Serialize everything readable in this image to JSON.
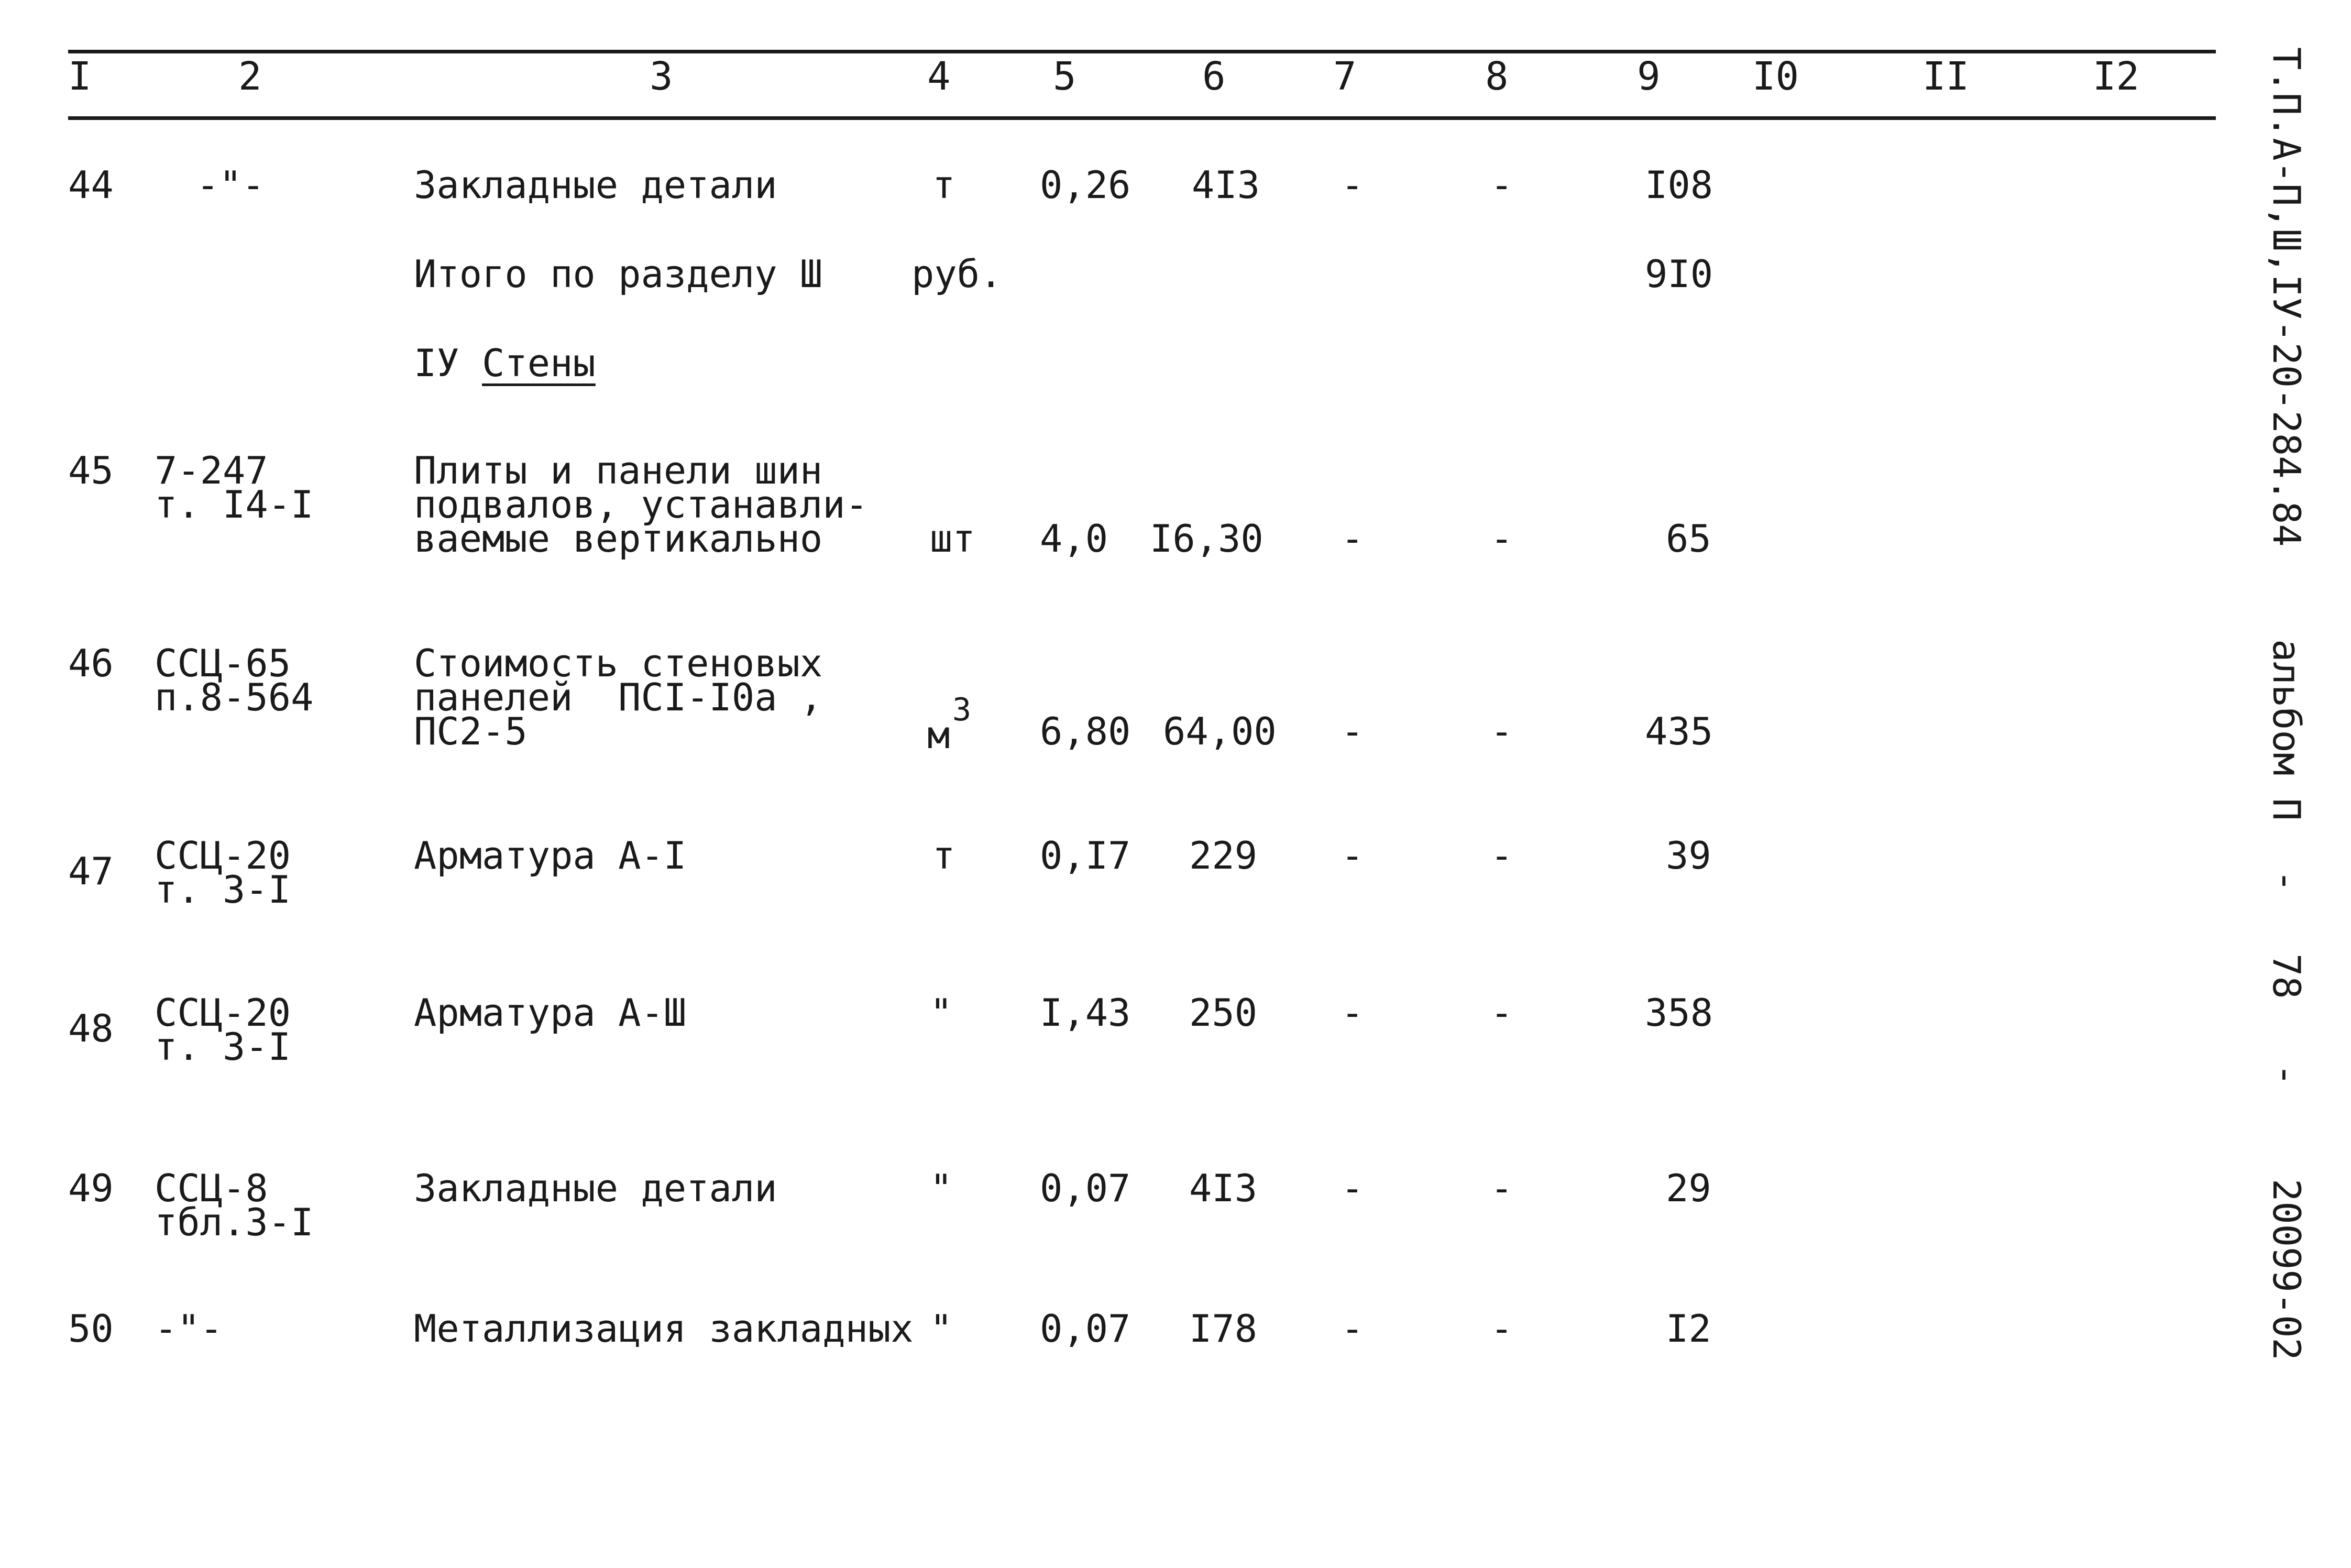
{
  "header": {
    "columns": [
      "I",
      "2",
      "3",
      "4",
      "5",
      "6",
      "7",
      "8",
      "9",
      "I0",
      "II",
      "I2"
    ]
  },
  "rows": [
    {
      "num": "44",
      "code1": "-\"-",
      "code2": "",
      "name1": "Закладные детали",
      "name2": "",
      "name3": "",
      "unit": "т",
      "c5": "0,26",
      "c6": "4I3",
      "c7": "-",
      "c8": "-",
      "c9": "I08"
    },
    {
      "num": "",
      "code1": "",
      "code2": "",
      "name1": "Итого по разделу Ш",
      "name2": "",
      "name3": "",
      "unit": "руб.",
      "c5": "",
      "c6": "",
      "c7": "",
      "c8": "",
      "c9": "9I0"
    },
    {
      "num": "45",
      "code1": "7-247",
      "code2": "т. I4-I",
      "name1": "Плиты и панели шин",
      "name2": "подвалов, устанавли-",
      "name3": "ваемые вертикально",
      "unit": "шт",
      "c5": "4,0",
      "c6": "I6,30",
      "c7": "-",
      "c8": "-",
      "c9": "65"
    },
    {
      "num": "46",
      "code1": "ССЦ-65",
      "code2": "п.8-564",
      "name1": "Стоимость стеновых",
      "name2": "панелей  ПСI-I0а ,",
      "name3": "ПС2-5",
      "unit": "м",
      "unit_sup": "3",
      "c5": "6,80",
      "c6": "64,00",
      "c7": "-",
      "c8": "-",
      "c9": "435"
    },
    {
      "num": "47",
      "code1": "ССЦ-20",
      "code2": "т. 3-I",
      "name1": "Арматура А-I",
      "name2": "",
      "name3": "",
      "unit": "т",
      "c5": "0,I7",
      "c6": "229",
      "c7": "-",
      "c8": "-",
      "c9": "39"
    },
    {
      "num": "48",
      "code1": "ССЦ-20",
      "code2": "т. 3-I",
      "name1": "Арматура А-Ш",
      "name2": "",
      "name3": "",
      "unit": "\"",
      "c5": "I,43",
      "c6": "250",
      "c7": "-",
      "c8": "-",
      "c9": "358"
    },
    {
      "num": "49",
      "code1": "ССЦ-8",
      "code2": "тбл.3-I",
      "name1": "Закладные детали",
      "name2": "",
      "name3": "",
      "unit": "\"",
      "c5": "0,07",
      "c6": "4I3",
      "c7": "-",
      "c8": "-",
      "c9": "29"
    },
    {
      "num": "50",
      "code1": "-\"-",
      "code2": "",
      "name1": "Металлизация закладных",
      "name2": "",
      "name3": "",
      "unit": "\"",
      "c5": "0,07",
      "c6": "I78",
      "c7": "-",
      "c8": "-",
      "c9": "I2"
    }
  ],
  "section": {
    "number": "IУ",
    "title": "Стены"
  },
  "side": {
    "code": "Т.П.А-П,Ш,IУ-20-284.84",
    "album": "альбом П",
    "dash1": "-",
    "page": "78",
    "dash2": "-",
    "doc": "20099-02"
  }
}
